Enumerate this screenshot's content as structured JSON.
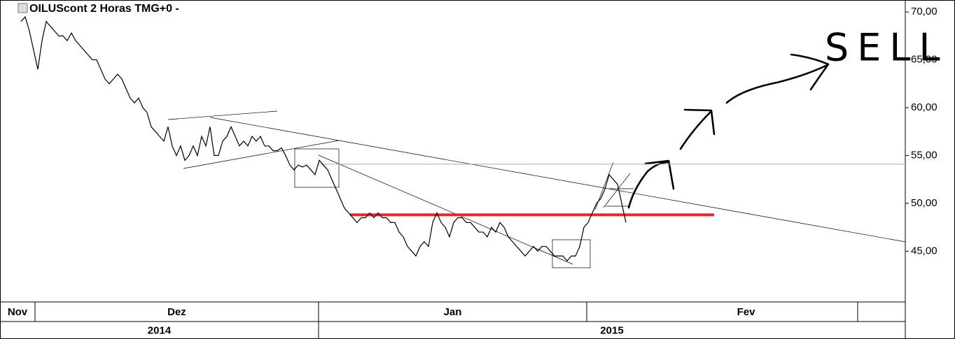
{
  "chart_data": {
    "type": "line",
    "title": "OILUScont 2 Horas TMG+0 -",
    "annotation": "SELL",
    "xlim": [
      -5,
      210.5
    ],
    "ylim": [
      39.7,
      71.25
    ],
    "yticks": [
      {
        "value": 45,
        "label": "45,00"
      },
      {
        "value": 50,
        "label": "50,00"
      },
      {
        "value": 55,
        "label": "55,00"
      },
      {
        "value": 60,
        "label": "60,00"
      },
      {
        "value": 65,
        "label": "65,00"
      },
      {
        "value": 70,
        "label": "70,00"
      }
    ],
    "xticks": [
      {
        "value": -5,
        "label": "Nov"
      },
      {
        "value": 3.33,
        "label": "Dez"
      },
      {
        "value": 70.83,
        "label": "Jan"
      },
      {
        "value": 134.67,
        "label": "Fev"
      }
    ],
    "years": [
      {
        "value": -5,
        "label": "2014"
      },
      {
        "value": 70.83,
        "label": "2015"
      }
    ],
    "hlines": [
      {
        "x": [
          78.33,
          165
        ],
        "y": 48.8,
        "color": "#e8252a"
      },
      {
        "x": [
          70.83,
          210.5
        ],
        "y": 54.1,
        "color": "#aaaaaa"
      }
    ],
    "series": [
      {
        "color": "#000000",
        "values": [
          69,
          69.5,
          68,
          66,
          64,
          67,
          69,
          68.5,
          68,
          67.5,
          67.5,
          67,
          67.8,
          67,
          66.5,
          66,
          65.5,
          65,
          65,
          64,
          63,
          62.5,
          63,
          63.5,
          63,
          62,
          61,
          60.5,
          61,
          60,
          59.5,
          58,
          57.5,
          57,
          56.5,
          58,
          56,
          55,
          56,
          54.5,
          55,
          56,
          55,
          57,
          56,
          58,
          55,
          55,
          56.5,
          57,
          58,
          57,
          56,
          56.5,
          56,
          57,
          56.5,
          57,
          56,
          56,
          55.5,
          55.5,
          55.8,
          55,
          54,
          53.5,
          54,
          53.8,
          54,
          53.5,
          53,
          54.5,
          54,
          53.5,
          52.5,
          51.5,
          50.5,
          49.5,
          49,
          48.5,
          48,
          48.5,
          48.5,
          49,
          48.5,
          49,
          48.5,
          48.5,
          48,
          48,
          47,
          46.5,
          45.5,
          45,
          44.5,
          45.5,
          46,
          45.5,
          48,
          49,
          48,
          47.5,
          46.5,
          48,
          48.5,
          48.5,
          48,
          48,
          47.5,
          47,
          47,
          46.5,
          47.5,
          47,
          48,
          47.5,
          46.5,
          46,
          45.5,
          45,
          44.5,
          45,
          45.5,
          45,
          45.5,
          45.5,
          45,
          44.5,
          44.5,
          44.5,
          44,
          44.5,
          44.5,
          45.5,
          47.5,
          48,
          49,
          50,
          50.5,
          51.5,
          53,
          52.5,
          52,
          50,
          48
        ]
      }
    ]
  }
}
